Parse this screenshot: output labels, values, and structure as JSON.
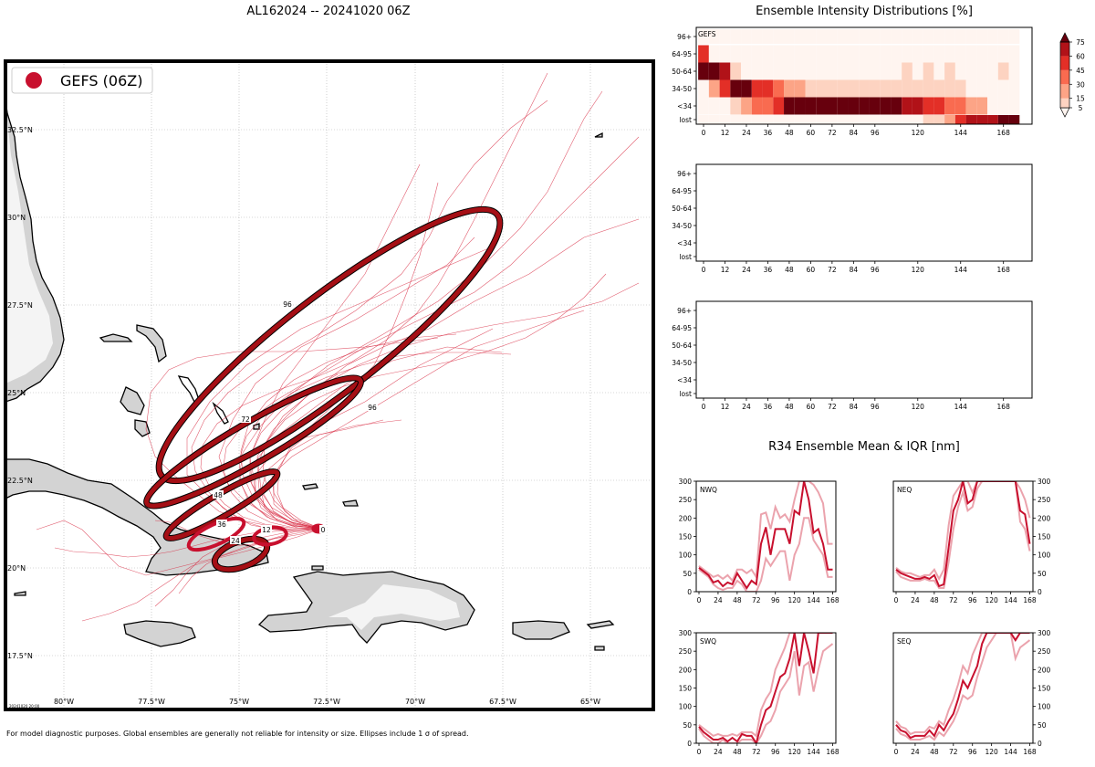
{
  "header": {
    "title": "AL162024 -- 20241020 06Z",
    "intensity_title": "Ensemble Intensity Distributions [%]",
    "r34_title": "R34 Ensemble Mean & IQR [nm]",
    "footer": "For model diagnostic purposes. Global ensembles are generally not reliable for intensity or size. Ellipses include 1 σ of spread."
  },
  "map": {
    "legend_label": "GEFS (06Z)",
    "stamp": "20241020 20:00",
    "lon_labels": [
      "80°W",
      "77.5°W",
      "75°W",
      "72.5°W",
      "70°W",
      "67.5°W",
      "65°W"
    ],
    "lat_labels": [
      "32.5°N",
      "30°N",
      "27.5°N",
      "25°N",
      "22.5°N",
      "20°N",
      "17.5°N"
    ],
    "ellipse_labels": [
      "0",
      "12",
      "24",
      "36",
      "48",
      "72",
      "96",
      "96"
    ],
    "colors": {
      "track": "#d7263d",
      "ellipse": "#a50f15",
      "land": "#d3d3d3",
      "legend_dot": "#c8102e"
    }
  },
  "chart_data": [
    {
      "type": "heatmap",
      "title": "Ensemble Intensity Distributions [%]",
      "panel_label": "GEFS",
      "x_ticks": [
        0,
        12,
        24,
        36,
        48,
        60,
        72,
        84,
        96,
        120,
        144,
        168
      ],
      "y_categories": [
        "lost",
        "<34",
        "34-50",
        "50-64",
        "64-95",
        "96+"
      ],
      "colorbar_ticks": [
        5,
        15,
        30,
        45,
        60,
        75
      ],
      "hours": [
        0,
        6,
        12,
        18,
        24,
        30,
        36,
        42,
        48,
        54,
        60,
        66,
        72,
        78,
        84,
        90,
        96,
        102,
        108,
        114,
        120,
        126,
        132,
        138,
        144,
        150,
        156,
        162,
        168,
        174
      ],
      "values": {
        "96+": [
          0,
          0,
          0,
          0,
          0,
          0,
          0,
          0,
          0,
          0,
          0,
          0,
          0,
          0,
          0,
          0,
          0,
          0,
          0,
          0,
          0,
          0,
          0,
          0,
          0,
          0,
          0,
          0,
          0,
          0
        ],
        "64-95": [
          45,
          0,
          0,
          0,
          0,
          0,
          0,
          0,
          0,
          0,
          0,
          0,
          0,
          0,
          0,
          0,
          0,
          0,
          0,
          0,
          0,
          0,
          0,
          0,
          0,
          0,
          0,
          0,
          0,
          0
        ],
        "50-64": [
          75,
          75,
          60,
          10,
          0,
          0,
          0,
          0,
          0,
          0,
          0,
          0,
          0,
          0,
          0,
          0,
          0,
          0,
          0,
          10,
          0,
          10,
          0,
          10,
          0,
          0,
          0,
          0,
          10,
          0
        ],
        "34-50": [
          0,
          25,
          55,
          80,
          80,
          50,
          50,
          35,
          15,
          15,
          5,
          10,
          10,
          10,
          10,
          10,
          10,
          10,
          10,
          10,
          10,
          10,
          10,
          10,
          10,
          0,
          0,
          0,
          0,
          0
        ],
        "<34": [
          0,
          0,
          0,
          5,
          20,
          40,
          40,
          55,
          75,
          80,
          80,
          80,
          80,
          80,
          80,
          80,
          80,
          80,
          80,
          65,
          65,
          50,
          50,
          30,
          30,
          15,
          15,
          0,
          0,
          0
        ],
        "lost": [
          0,
          0,
          0,
          0,
          0,
          0,
          0,
          0,
          0,
          0,
          0,
          0,
          0,
          0,
          0,
          0,
          0,
          0,
          0,
          0,
          0,
          10,
          10,
          20,
          50,
          65,
          65,
          70,
          80,
          80
        ]
      }
    },
    {
      "type": "heatmap",
      "x_ticks": [
        0,
        12,
        24,
        36,
        48,
        60,
        72,
        84,
        96,
        120,
        144,
        168
      ],
      "y_categories": [
        "lost",
        "<34",
        "34-50",
        "50-64",
        "64-95",
        "96+"
      ],
      "values": {}
    },
    {
      "type": "heatmap",
      "x_ticks": [
        0,
        12,
        24,
        36,
        48,
        60,
        72,
        84,
        96,
        120,
        144,
        168
      ],
      "y_categories": [
        "lost",
        "<34",
        "34-50",
        "50-64",
        "64-95",
        "96+"
      ],
      "values": {}
    },
    {
      "type": "line",
      "panel_label": "NWQ",
      "x_ticks": [
        0,
        24,
        48,
        72,
        96,
        120,
        144,
        168
      ],
      "y_ticks": [
        0,
        50,
        100,
        150,
        200,
        250,
        300
      ],
      "ylim": [
        0,
        300
      ],
      "x": [
        0,
        6,
        12,
        18,
        24,
        30,
        36,
        42,
        48,
        54,
        60,
        66,
        72,
        78,
        84,
        90,
        96,
        102,
        108,
        114,
        120,
        126,
        132,
        138,
        144,
        150,
        156,
        162,
        168
      ],
      "series": [
        {
          "role": "mean",
          "values": [
            65,
            55,
            45,
            25,
            30,
            15,
            25,
            20,
            50,
            30,
            10,
            30,
            20,
            130,
            175,
            100,
            170,
            170,
            170,
            130,
            220,
            210,
            300,
            250,
            160,
            170,
            130,
            60,
            60
          ]
        },
        {
          "role": "iqr_low",
          "values": [
            60,
            50,
            40,
            20,
            10,
            5,
            10,
            10,
            30,
            20,
            0,
            0,
            0,
            30,
            90,
            70,
            90,
            110,
            110,
            30,
            100,
            130,
            200,
            200,
            140,
            120,
            100,
            40,
            40
          ]
        },
        {
          "role": "iqr_high",
          "values": [
            70,
            60,
            50,
            40,
            45,
            35,
            45,
            30,
            60,
            60,
            50,
            60,
            40,
            210,
            215,
            170,
            230,
            200,
            210,
            190,
            250,
            300,
            300,
            300,
            290,
            270,
            240,
            130,
            130
          ]
        }
      ]
    },
    {
      "type": "line",
      "panel_label": "NEQ",
      "x_ticks": [
        0,
        24,
        48,
        72,
        96,
        120,
        144,
        168
      ],
      "y_ticks": [
        0,
        50,
        100,
        150,
        200,
        250,
        300
      ],
      "ylim": [
        0,
        300
      ],
      "x": [
        0,
        6,
        12,
        18,
        24,
        30,
        36,
        42,
        48,
        54,
        60,
        66,
        72,
        78,
        84,
        90,
        96,
        102,
        108,
        114,
        120,
        126,
        132,
        138,
        144,
        150,
        156,
        162,
        168
      ],
      "series": [
        {
          "role": "mean",
          "values": [
            60,
            50,
            45,
            40,
            35,
            35,
            40,
            35,
            45,
            15,
            20,
            120,
            220,
            250,
            300,
            240,
            250,
            300,
            300,
            300,
            300,
            300,
            300,
            300,
            300,
            300,
            220,
            210,
            130
          ]
        },
        {
          "role": "iqr_low",
          "values": [
            55,
            40,
            35,
            30,
            30,
            30,
            35,
            30,
            30,
            10,
            10,
            80,
            170,
            230,
            270,
            220,
            230,
            280,
            300,
            300,
            300,
            300,
            300,
            300,
            300,
            300,
            190,
            170,
            110
          ]
        },
        {
          "role": "iqr_high",
          "values": [
            65,
            55,
            50,
            50,
            45,
            40,
            45,
            45,
            60,
            35,
            60,
            180,
            260,
            280,
            300,
            300,
            270,
            300,
            300,
            300,
            300,
            300,
            300,
            300,
            300,
            300,
            280,
            250,
            200
          ]
        }
      ]
    },
    {
      "type": "line",
      "panel_label": "SWQ",
      "x_ticks": [
        0,
        24,
        48,
        72,
        96,
        120,
        144,
        168
      ],
      "y_ticks": [
        0,
        50,
        100,
        150,
        200,
        250,
        300
      ],
      "ylim": [
        0,
        300
      ],
      "x": [
        0,
        6,
        12,
        18,
        24,
        30,
        36,
        42,
        48,
        54,
        60,
        66,
        72,
        78,
        84,
        90,
        96,
        102,
        108,
        114,
        120,
        126,
        132,
        138,
        144,
        150,
        156,
        162,
        168
      ],
      "series": [
        {
          "role": "mean",
          "values": [
            45,
            30,
            20,
            10,
            10,
            15,
            5,
            15,
            5,
            25,
            20,
            20,
            0,
            50,
            90,
            100,
            140,
            180,
            190,
            230,
            300,
            210,
            300,
            250,
            190,
            300,
            300,
            300,
            300
          ]
        },
        {
          "role": "iqr_low",
          "values": [
            40,
            20,
            10,
            0,
            0,
            10,
            0,
            0,
            0,
            10,
            10,
            10,
            0,
            20,
            50,
            60,
            90,
            140,
            160,
            180,
            250,
            130,
            210,
            220,
            140,
            200,
            250,
            260,
            270
          ]
        },
        {
          "role": "iqr_high",
          "values": [
            50,
            40,
            30,
            20,
            25,
            20,
            20,
            25,
            20,
            30,
            30,
            30,
            20,
            90,
            120,
            140,
            200,
            230,
            260,
            300,
            300,
            300,
            300,
            300,
            300,
            300,
            300,
            300,
            300
          ]
        }
      ]
    },
    {
      "type": "line",
      "panel_label": "SEQ",
      "x_ticks": [
        0,
        24,
        48,
        72,
        96,
        120,
        144,
        168
      ],
      "y_ticks": [
        0,
        50,
        100,
        150,
        200,
        250,
        300
      ],
      "ylim": [
        0,
        300
      ],
      "x": [
        0,
        6,
        12,
        18,
        24,
        30,
        36,
        42,
        48,
        54,
        60,
        66,
        72,
        78,
        84,
        90,
        96,
        102,
        108,
        114,
        120,
        126,
        132,
        138,
        144,
        150,
        156,
        162,
        168
      ],
      "series": [
        {
          "role": "mean",
          "values": [
            50,
            35,
            30,
            15,
            20,
            20,
            20,
            35,
            20,
            50,
            35,
            60,
            80,
            120,
            170,
            150,
            180,
            210,
            270,
            300,
            300,
            300,
            300,
            300,
            300,
            280,
            300,
            300,
            300
          ]
        },
        {
          "role": "iqr_low",
          "values": [
            40,
            25,
            20,
            10,
            10,
            10,
            15,
            20,
            10,
            30,
            20,
            40,
            60,
            90,
            130,
            120,
            130,
            180,
            220,
            260,
            280,
            300,
            300,
            300,
            300,
            230,
            260,
            270,
            280
          ]
        },
        {
          "role": "iqr_high",
          "values": [
            60,
            45,
            40,
            25,
            30,
            30,
            30,
            45,
            40,
            60,
            50,
            90,
            120,
            160,
            210,
            190,
            240,
            270,
            300,
            300,
            300,
            300,
            300,
            300,
            300,
            300,
            300,
            300,
            300
          ]
        }
      ]
    }
  ]
}
